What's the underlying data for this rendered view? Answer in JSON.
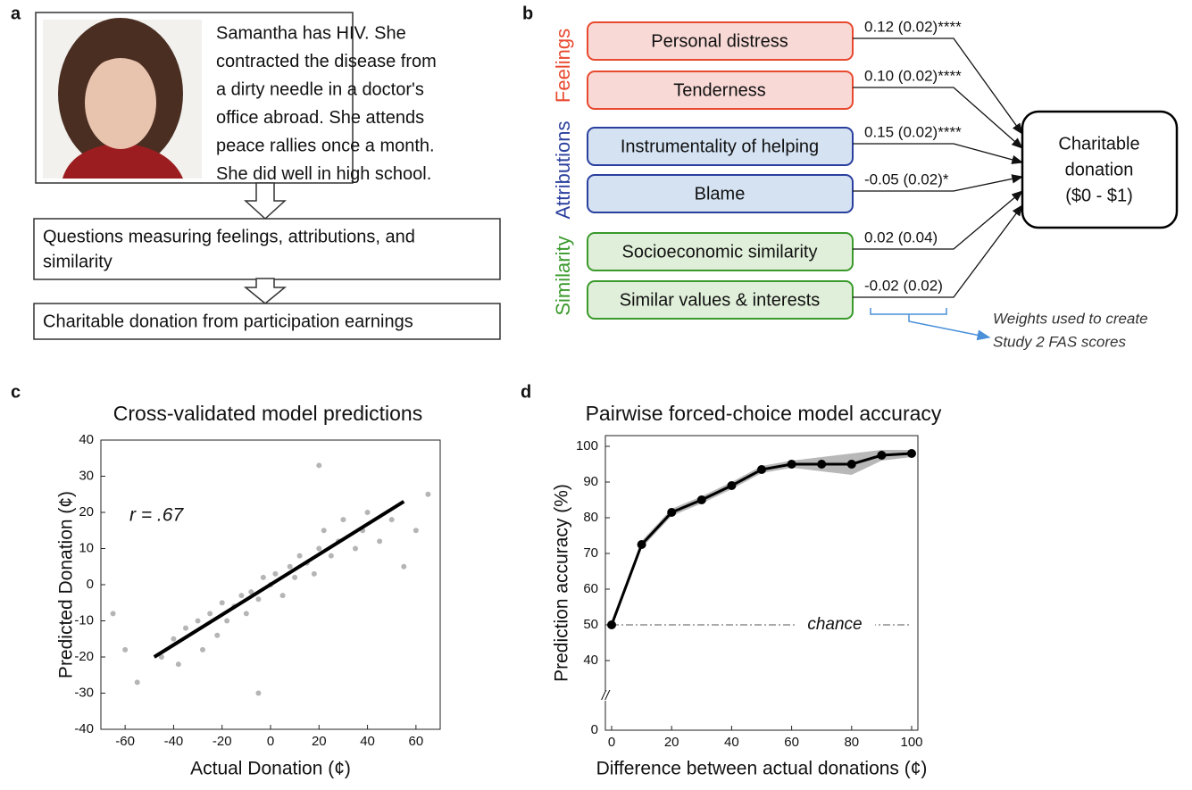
{
  "panel_a": {
    "letter": "a",
    "vignette_lines": [
      "Samantha has HIV. She",
      "contracted the disease from",
      "a dirty needle in a doctor's",
      "office abroad. She attends",
      "peace rallies once a month.",
      "She did well in high school."
    ],
    "questions_lines": [
      "Questions measuring feelings, attributions, and",
      "similarity"
    ],
    "outcome": "Charitable donation from participation earnings"
  },
  "panel_b": {
    "letter": "b",
    "groups": [
      {
        "label": "Feelings",
        "color": "#e8492f"
      },
      {
        "label": "Attributions",
        "color": "#2b3f9e"
      },
      {
        "label": "Similarity",
        "color": "#3a9a2c"
      }
    ],
    "predictors": [
      {
        "label": "Personal distress",
        "coef": "0.12 (0.02)****",
        "group": 0
      },
      {
        "label": "Tenderness",
        "coef": "0.10 (0.02)****",
        "group": 0
      },
      {
        "label": "Instrumentality of helping",
        "coef": "0.15 (0.02)****",
        "group": 1
      },
      {
        "label": "Blame",
        "coef": "-0.05 (0.02)*",
        "group": 1
      },
      {
        "label": "Socioeconomic similarity",
        "coef": "0.02 (0.04)",
        "group": 2
      },
      {
        "label": "Similar values & interests",
        "coef": "-0.02 (0.02)",
        "group": 2
      }
    ],
    "outcome_lines": [
      "Charitable",
      "donation",
      "($0 - $1)"
    ],
    "note_lines": [
      "Weights used to create",
      "Study 2 FAS scores"
    ]
  },
  "chart_data": [
    {
      "type": "scatter",
      "letter": "c",
      "title": "Cross-validated model predictions",
      "x_label": "Actual Donation (¢)",
      "y_label": "Predicted Donation (¢)",
      "annotation": "r = .67",
      "xlim": [
        -70,
        70
      ],
      "xticks": [
        -60,
        -40,
        -20,
        0,
        20,
        40,
        60
      ],
      "ylim": [
        -40,
        40
      ],
      "yticks": [
        -40,
        -30,
        -20,
        -10,
        0,
        10,
        20,
        30,
        40
      ],
      "points": {
        "color": "#b5b5b5",
        "x": [
          -60,
          -55,
          -45,
          -40,
          -38,
          -35,
          -30,
          -28,
          -25,
          -22,
          -20,
          -18,
          -15,
          -12,
          -10,
          -8,
          -5,
          -3,
          0,
          2,
          5,
          8,
          10,
          12,
          15,
          18,
          20,
          22,
          25,
          28,
          30,
          35,
          38,
          40,
          45,
          50,
          55,
          60,
          65,
          -65,
          -5,
          20
        ],
        "values": [
          -18,
          -27,
          -20,
          -15,
          -22,
          -12,
          -10,
          -18,
          -8,
          -14,
          -5,
          -10,
          -6,
          -3,
          -8,
          -2,
          -4,
          2,
          0,
          3,
          -3,
          5,
          2,
          8,
          6,
          3,
          10,
          15,
          8,
          12,
          18,
          10,
          15,
          20,
          12,
          18,
          5,
          15,
          25,
          -8,
          -30,
          33
        ]
      },
      "fit_line": {
        "color": "#000000",
        "x": [
          -48,
          55
        ],
        "values": [
          -20,
          23
        ]
      }
    },
    {
      "type": "line",
      "letter": "d",
      "title": "Pairwise forced-choice model accuracy",
      "x_label": "Difference between actual donations (¢)",
      "y_label": "Prediction accuracy (%)",
      "xlim": [
        0,
        100
      ],
      "xticks": [
        0,
        20,
        40,
        60,
        80,
        100
      ],
      "ylim": [
        40,
        100
      ],
      "yticks": [
        40,
        50,
        60,
        70,
        80,
        90,
        100
      ],
      "y_break_tick": 0,
      "y_break_label": "//",
      "x": [
        0,
        10,
        20,
        30,
        40,
        50,
        60,
        70,
        80,
        90,
        100
      ],
      "values": [
        50,
        72.5,
        81.5,
        85,
        89,
        93.5,
        95,
        95,
        95,
        97.5,
        98
      ],
      "color": "#000000",
      "band": {
        "color": "#9a9a9a",
        "lower": [
          49,
          71.5,
          80.5,
          84,
          88,
          92.5,
          94,
          93,
          92,
          96,
          97
        ],
        "upper": [
          51,
          73.5,
          82.5,
          86,
          90,
          94.5,
          96,
          97,
          98,
          99,
          99
        ]
      },
      "chance": {
        "value": 50,
        "label": "chance"
      }
    }
  ]
}
